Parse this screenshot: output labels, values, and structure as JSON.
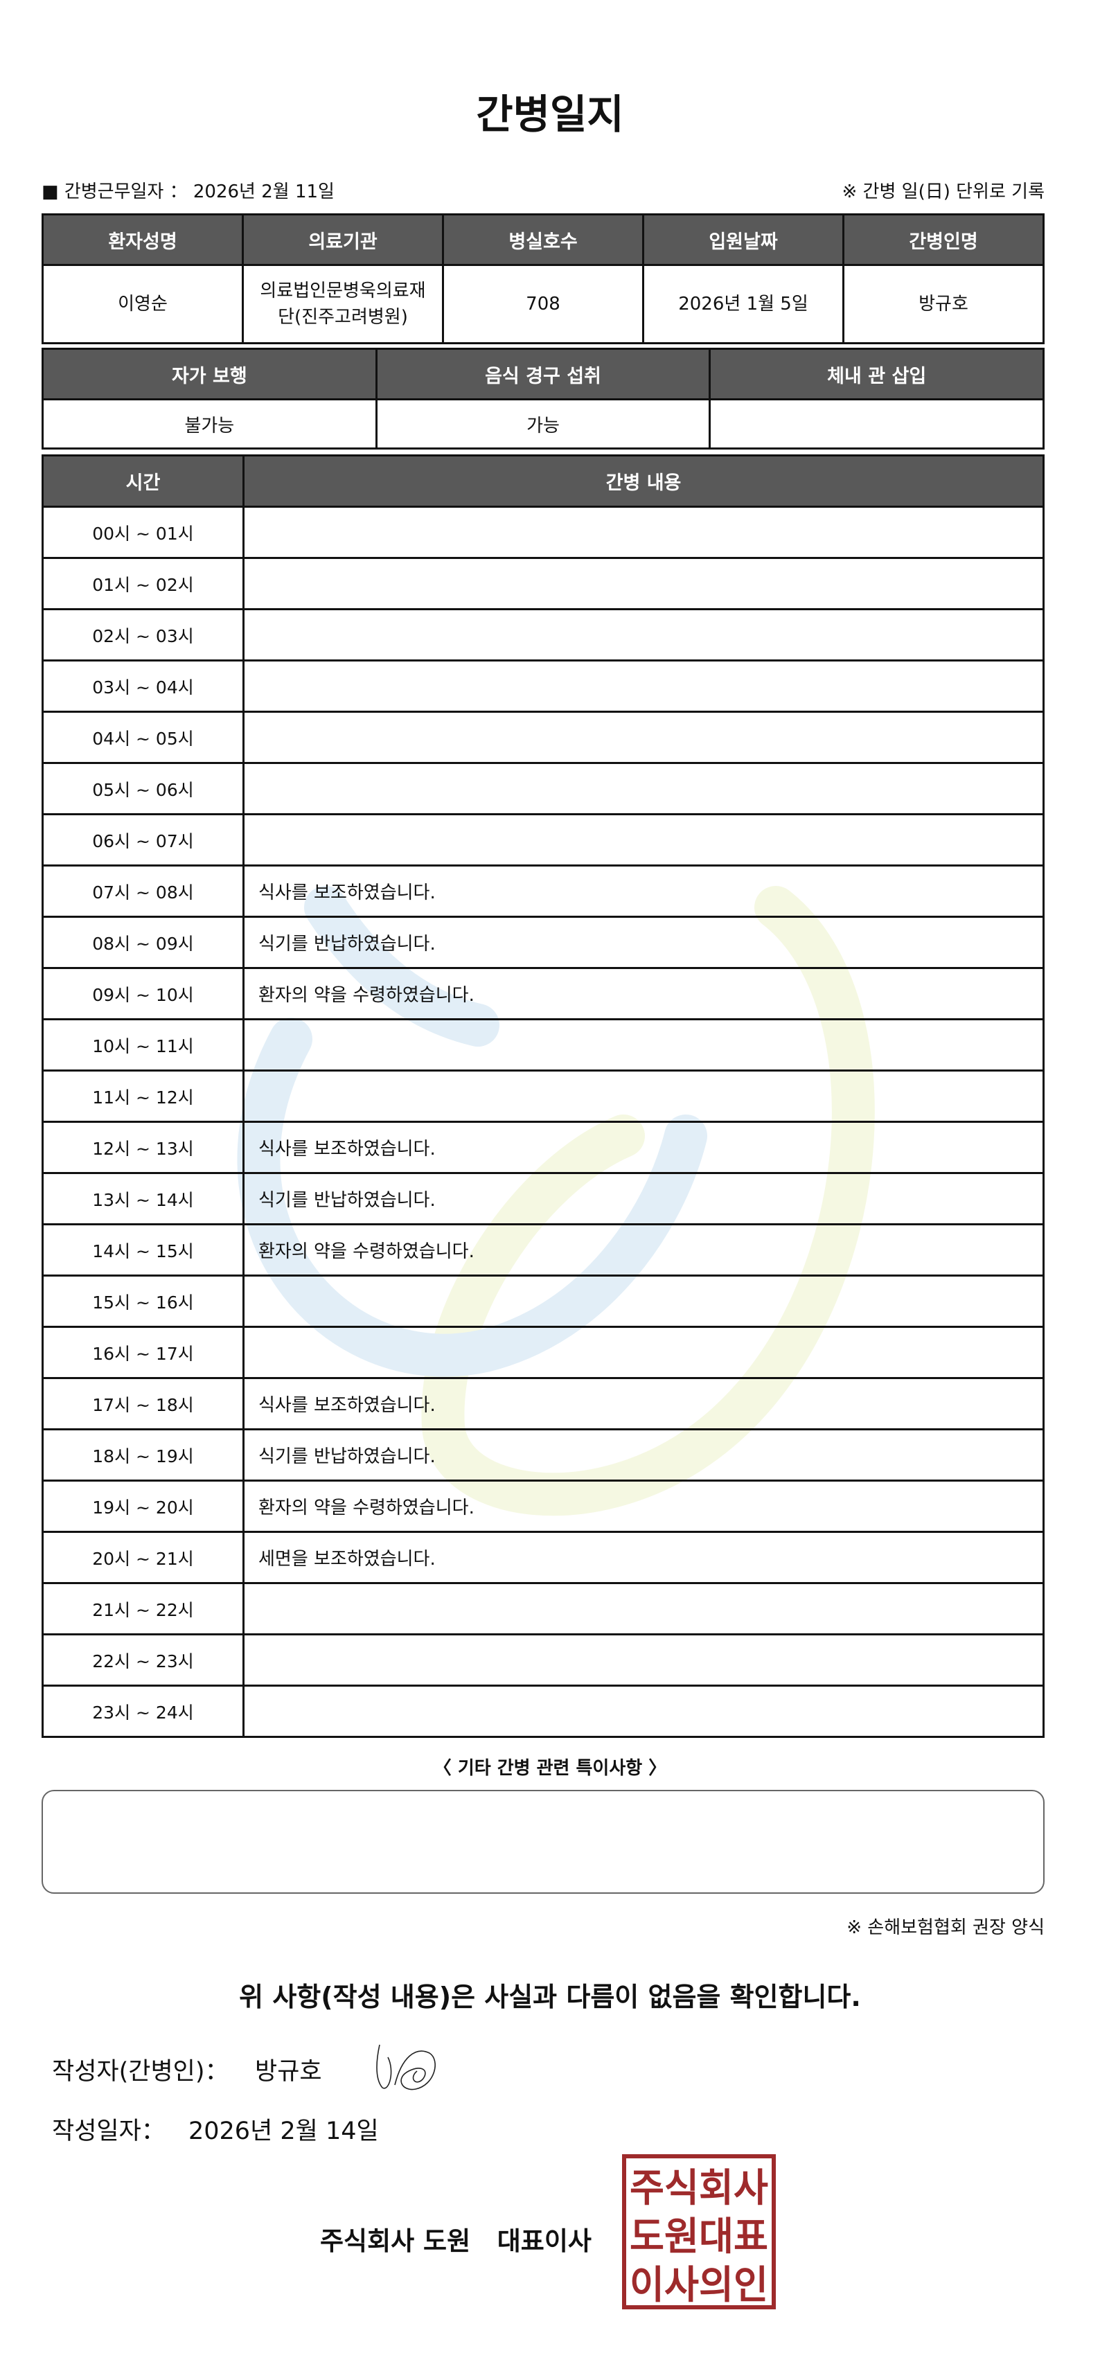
{
  "title": "간병일지",
  "work_date": {
    "label": "■ 간병근무일자 ：",
    "value": "2026년 2월 11일"
  },
  "unit_note": "※ 간병 일(日) 단위로 기록",
  "patient_info": {
    "headers": [
      "환자성명",
      "의료기관",
      "병실호수",
      "입원날짜",
      "간병인명"
    ],
    "values": [
      "이영순",
      "의료법인문병욱의료재단(진주고려병원)",
      "708",
      "2026년 1월 5일",
      "방규호"
    ]
  },
  "status_info": {
    "headers": [
      "자가 보행",
      "음식 경구 섭취",
      "체내 관 삽입"
    ],
    "values": [
      "불가능",
      "가능",
      ""
    ]
  },
  "care_log": {
    "headers": [
      "시간",
      "간병 내용"
    ],
    "rows": [
      {
        "time": "00시 ~ 01시",
        "content": ""
      },
      {
        "time": "01시 ~ 02시",
        "content": ""
      },
      {
        "time": "02시 ~ 03시",
        "content": ""
      },
      {
        "time": "03시 ~ 04시",
        "content": ""
      },
      {
        "time": "04시 ~ 05시",
        "content": ""
      },
      {
        "time": "05시 ~ 06시",
        "content": ""
      },
      {
        "time": "06시 ~ 07시",
        "content": ""
      },
      {
        "time": "07시 ~ 08시",
        "content": "식사를 보조하였습니다."
      },
      {
        "time": "08시 ~ 09시",
        "content": "식기를 반납하였습니다."
      },
      {
        "time": "09시 ~ 10시",
        "content": "환자의 약을 수령하였습니다."
      },
      {
        "time": "10시 ~ 11시",
        "content": ""
      },
      {
        "time": "11시 ~ 12시",
        "content": ""
      },
      {
        "time": "12시 ~ 13시",
        "content": "식사를 보조하였습니다."
      },
      {
        "time": "13시 ~ 14시",
        "content": "식기를 반납하였습니다."
      },
      {
        "time": "14시 ~ 15시",
        "content": "환자의 약을 수령하였습니다."
      },
      {
        "time": "15시 ~ 16시",
        "content": ""
      },
      {
        "time": "16시 ~ 17시",
        "content": ""
      },
      {
        "time": "17시 ~ 18시",
        "content": "식사를 보조하였습니다."
      },
      {
        "time": "18시 ~ 19시",
        "content": "식기를 반납하였습니다."
      },
      {
        "time": "19시 ~ 20시",
        "content": "환자의 약을 수령하였습니다."
      },
      {
        "time": "20시 ~ 21시",
        "content": "세면을 보조하였습니다."
      },
      {
        "time": "21시 ~ 22시",
        "content": ""
      },
      {
        "time": "22시 ~ 23시",
        "content": ""
      },
      {
        "time": "23시 ~ 24시",
        "content": ""
      }
    ]
  },
  "special_notes": {
    "label": "〈 기타 간병 관련 특이사항 〉",
    "value": ""
  },
  "form_source": "※ 손해보험협회 권장 양식",
  "confirmation": "위 사항(작성 내용)은 사실과 다름이 없음을 확인합니다.",
  "writer": {
    "label": "작성자(간병인)：",
    "name": "방규호"
  },
  "written_date": {
    "label": "작성일자：",
    "value": "2026년 2월 14일"
  },
  "company": "주식회사 도원   대표이사",
  "stamp_text": [
    "주식회사",
    "도원대표",
    "이사의인"
  ],
  "colors": {
    "header_bg": "#595959",
    "stamp": "#9e2a2b",
    "watermark_blue": "#e2eef7",
    "watermark_yellow": "#f5f8e2"
  }
}
